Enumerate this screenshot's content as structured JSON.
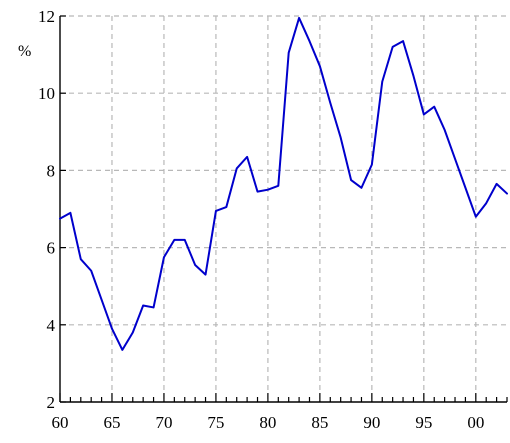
{
  "chart_data": {
    "type": "line",
    "title": "",
    "xlabel": "",
    "ylabel": "%",
    "xlim": [
      1960,
      2003
    ],
    "ylim": [
      2,
      12
    ],
    "grid": true,
    "legend": "none",
    "x_tick_values": [
      1960,
      1965,
      1970,
      1975,
      1980,
      1985,
      1990,
      1995,
      2000
    ],
    "x_tick_labels": [
      "60",
      "65",
      "70",
      "75",
      "80",
      "85",
      "90",
      "95",
      "00"
    ],
    "y_tick_values": [
      2,
      4,
      6,
      8,
      10,
      12
    ],
    "y_tick_labels": [
      "2",
      "4",
      "6",
      "8",
      "10",
      "12"
    ],
    "series": [
      {
        "color": "#0000cc",
        "x": [
          1960,
          1961,
          1962,
          1963,
          1964,
          1965,
          1966,
          1967,
          1968,
          1969,
          1970,
          1971,
          1972,
          1973,
          1974,
          1975,
          1976,
          1977,
          1978,
          1979,
          1980,
          1981,
          1982,
          1983,
          1984,
          1985,
          1986,
          1987,
          1988,
          1989,
          1990,
          1991,
          1992,
          1993,
          1994,
          1995,
          1996,
          1997,
          1998,
          1999,
          2000,
          2001,
          2002,
          2003
        ],
        "y": [
          6.75,
          6.9,
          5.7,
          5.4,
          4.65,
          3.9,
          3.35,
          3.8,
          4.5,
          4.45,
          5.75,
          6.2,
          6.2,
          5.55,
          5.3,
          6.95,
          7.05,
          8.05,
          8.35,
          7.45,
          7.5,
          7.6,
          11.05,
          11.95,
          11.35,
          10.7,
          9.75,
          8.85,
          7.75,
          7.55,
          8.15,
          10.3,
          11.2,
          11.35,
          10.45,
          9.45,
          9.65,
          9.05,
          8.3,
          7.55,
          6.8,
          7.15,
          7.65,
          7.4
        ]
      }
    ]
  }
}
